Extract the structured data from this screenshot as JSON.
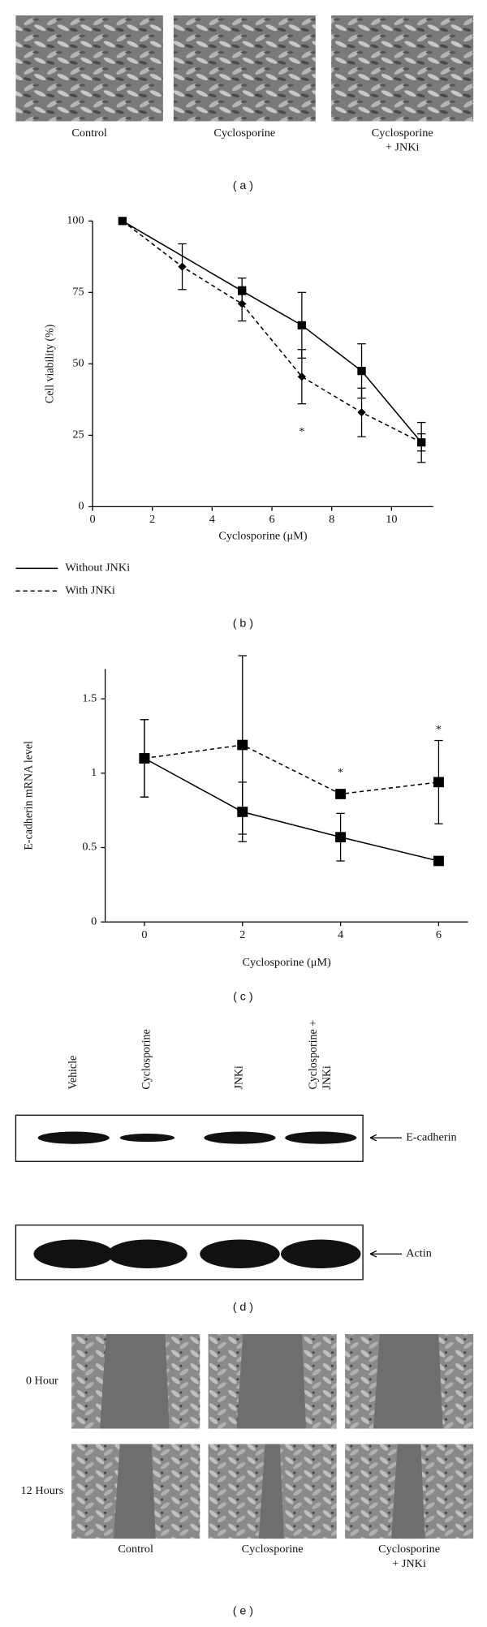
{
  "panel_a": {
    "label": "( a )",
    "captions": [
      [
        "Control"
      ],
      [
        "Cyclosporine"
      ],
      [
        "Cyclosporine",
        "+ JNKi"
      ]
    ]
  },
  "chart_data": [
    {
      "type": "line",
      "panel_label": "( b )",
      "x_label": "Cyclosporine (μM)",
      "y_label": "Cell viability (%)",
      "xlim": [
        0,
        11.4
      ],
      "ylim": [
        0,
        100
      ],
      "xticks": [
        0,
        2,
        4,
        6,
        8,
        10
      ],
      "yticks": [
        0,
        25,
        50,
        75,
        100
      ],
      "series": [
        {
          "name": "Without JNKi",
          "color": "#000000",
          "line_style": "solid",
          "marker": "square",
          "x": [
            1,
            5,
            7,
            9,
            11
          ],
          "values": [
            100,
            75.5,
            63.5,
            47.5,
            22.5
          ],
          "errors": [
            null,
            4.5,
            11.5,
            9.5,
            7
          ]
        },
        {
          "name": "With JNKi",
          "color": "#000000",
          "line_style": "dashed",
          "marker": "diamond",
          "x": [
            1,
            3,
            5,
            7,
            9,
            11
          ],
          "values": [
            100,
            84,
            71,
            45.5,
            33,
            22.5
          ],
          "errors": [
            null,
            8,
            6,
            9.5,
            8.5,
            3
          ]
        }
      ],
      "annotations": [
        {
          "text": "*",
          "x": 7,
          "y": 26
        }
      ]
    },
    {
      "type": "line",
      "panel_label": "( c )",
      "x_label": "Cyclosporine (μM)",
      "y_label": "E-cadherin mRNA level",
      "xlim": [
        -0.8,
        6.6
      ],
      "ylim": [
        0,
        1.7
      ],
      "xticks": [
        0,
        2,
        4,
        6
      ],
      "yticks": [
        0,
        0.5,
        1,
        1.5
      ],
      "series": [
        {
          "color": "#000000",
          "line_style": "solid",
          "marker": "square",
          "x": [
            0,
            2,
            4,
            6
          ],
          "values": [
            1.1,
            0.74,
            0.57,
            0.41
          ],
          "errors": [
            0.26,
            0.2,
            0.16,
            null
          ]
        },
        {
          "color": "#000000",
          "line_style": "dashed",
          "marker": "square",
          "x": [
            0,
            2,
            4,
            6
          ],
          "values": [
            1.1,
            1.19,
            0.86,
            0.94
          ],
          "errors": [
            0.26,
            0.6,
            null,
            0.28
          ]
        }
      ],
      "annotations": [
        {
          "text": "*",
          "x": 4,
          "y": 1.0
        },
        {
          "text": "*",
          "x": 6,
          "y": 1.29
        }
      ]
    }
  ],
  "panel_d": {
    "label": "( d )",
    "lanes": [
      [
        "Vehicle"
      ],
      [
        "Cyclosporine"
      ],
      [
        "JNKi"
      ],
      [
        "Cyclosporine +",
        "JNKi"
      ]
    ],
    "blots": [
      "E-cadherin",
      "Actin"
    ]
  },
  "panel_e": {
    "label": "( e )",
    "rows": [
      "0 Hour",
      "12 Hours"
    ],
    "captions": [
      [
        "Control"
      ],
      [
        "Cyclosporine"
      ],
      [
        "Cyclosporine",
        "+ JNKi"
      ]
    ]
  }
}
